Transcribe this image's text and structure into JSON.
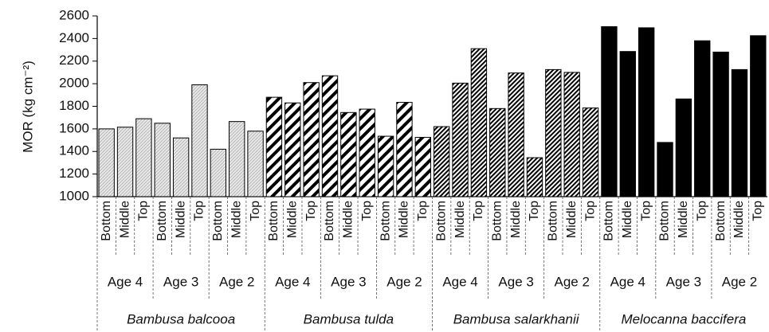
{
  "chart_data": {
    "type": "bar",
    "y_label": "MOR (kg cm⁻²)",
    "ylim": [
      1000,
      2600
    ],
    "yticks": [
      1000,
      1200,
      1400,
      1600,
      1800,
      2000,
      2200,
      2400,
      2600
    ],
    "categories": [
      "Bottom",
      "Middle",
      "Top",
      "Bottom",
      "Middle",
      "Top",
      "Bottom",
      "Middle",
      "Top"
    ],
    "groups": [
      "Age 4",
      "Age 3",
      "Age 2"
    ],
    "series": [
      {
        "name": "Bambusa balcooa",
        "color": "#000000",
        "pattern": "dots",
        "values": [
          1600,
          1615,
          1690,
          1650,
          1520,
          1990,
          1420,
          1665,
          1580
        ]
      },
      {
        "name": "Bambusa tulda",
        "color": "#000000",
        "pattern": "wide-stripes",
        "values": [
          1880,
          1830,
          2010,
          2070,
          1745,
          1775,
          1535,
          1835,
          1525
        ]
      },
      {
        "name": "Bambusa salarkhanii",
        "color": "#000000",
        "pattern": "fine-stripes",
        "values": [
          1620,
          2005,
          2310,
          1780,
          2095,
          1345,
          2125,
          2100,
          1785
        ]
      },
      {
        "name": "Melocanna baccifera",
        "color": "#000000",
        "pattern": "solid",
        "values": [
          2505,
          2285,
          2495,
          1480,
          1865,
          2380,
          2280,
          2125,
          2425
        ]
      }
    ]
  }
}
